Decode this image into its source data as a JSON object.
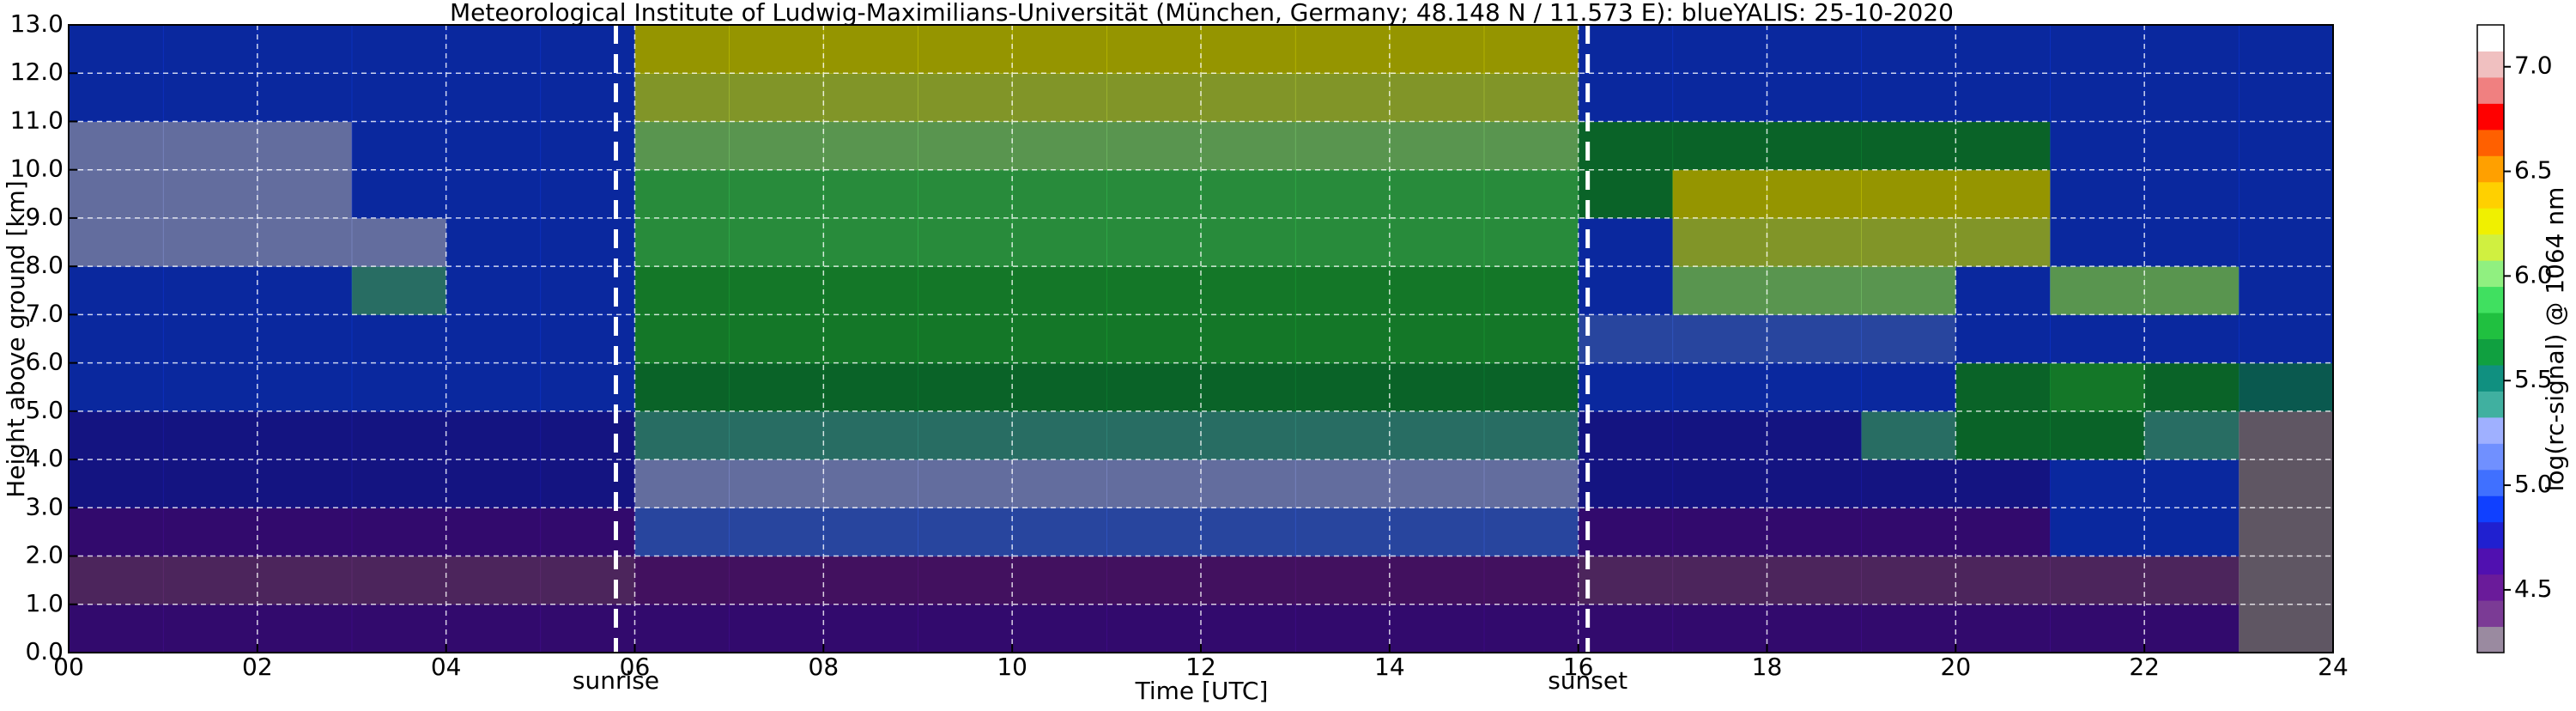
{
  "chart_data": {
    "type": "heatmap",
    "title": "Meteorological Institute of Ludwig-Maximilians-Universität (München, Germany; 48.148 N / 11.573 E):    blueYALIS: 25-10-2020",
    "xlabel": "Time [UTC]",
    "ylabel": "Height above ground [km]",
    "colorbar_label": "log(rc-signal) @ 1064 nm",
    "xlim": [
      0,
      24
    ],
    "ylim": [
      0,
      13
    ],
    "xticks": [
      {
        "value": 0,
        "label": "00"
      },
      {
        "value": 2,
        "label": "02"
      },
      {
        "value": 4,
        "label": "04"
      },
      {
        "value": 6,
        "label": "06"
      },
      {
        "value": 8,
        "label": "08"
      },
      {
        "value": 10,
        "label": "10"
      },
      {
        "value": 12,
        "label": "12"
      },
      {
        "value": 14,
        "label": "14"
      },
      {
        "value": 16,
        "label": "16"
      },
      {
        "value": 18,
        "label": "18"
      },
      {
        "value": 20,
        "label": "20"
      },
      {
        "value": 22,
        "label": "22"
      },
      {
        "value": 24,
        "label": "24"
      }
    ],
    "yticks": [
      {
        "value": 0,
        "label": "0.0"
      },
      {
        "value": 1,
        "label": "1.0"
      },
      {
        "value": 2,
        "label": "2.0"
      },
      {
        "value": 3,
        "label": "3.0"
      },
      {
        "value": 4,
        "label": "4.0"
      },
      {
        "value": 5,
        "label": "5.0"
      },
      {
        "value": 6,
        "label": "6.0"
      },
      {
        "value": 7,
        "label": "7.0"
      },
      {
        "value": 8,
        "label": "8.0"
      },
      {
        "value": 9,
        "label": "9.0"
      },
      {
        "value": 10,
        "label": "10.0"
      },
      {
        "value": 11,
        "label": "11.0"
      },
      {
        "value": 12,
        "label": "12.0"
      },
      {
        "value": 13,
        "label": "13.0"
      }
    ],
    "grid": true,
    "xbins": [
      0,
      1,
      2,
      3,
      4,
      5,
      6,
      7,
      8,
      9,
      10,
      11,
      12,
      13,
      14,
      15,
      16,
      17,
      18,
      19,
      20,
      21,
      22,
      23,
      24
    ],
    "ybins": [
      0,
      1,
      2,
      3,
      4,
      5,
      6,
      7,
      8,
      9,
      10,
      11,
      12,
      13
    ],
    "z": [
      [
        4.6,
        4.6,
        4.6,
        4.6,
        4.6,
        4.6,
        4.6,
        4.6,
        4.6,
        4.6,
        4.6,
        4.6,
        4.6,
        4.6,
        4.6,
        4.6,
        4.6,
        4.6,
        4.6,
        4.6,
        4.6,
        4.6,
        4.6,
        4.3
      ],
      [
        4.4,
        4.4,
        4.4,
        4.4,
        4.4,
        4.4,
        4.5,
        4.5,
        4.5,
        4.5,
        4.5,
        4.5,
        4.5,
        4.5,
        4.5,
        4.5,
        4.4,
        4.4,
        4.4,
        4.4,
        4.4,
        4.4,
        4.4,
        4.2
      ],
      [
        4.6,
        4.6,
        4.6,
        4.6,
        4.6,
        4.6,
        5.0,
        5.0,
        5.0,
        5.0,
        5.0,
        5.0,
        5.0,
        5.0,
        5.0,
        5.0,
        4.6,
        4.6,
        4.6,
        4.6,
        4.6,
        4.9,
        4.9,
        4.2
      ],
      [
        4.7,
        4.7,
        4.7,
        4.7,
        4.7,
        4.7,
        5.2,
        5.2,
        5.2,
        5.2,
        5.2,
        5.2,
        5.2,
        5.2,
        5.2,
        5.2,
        4.7,
        4.7,
        4.7,
        4.7,
        4.7,
        4.9,
        4.9,
        4.2
      ],
      [
        4.8,
        4.8,
        4.8,
        4.8,
        4.8,
        4.8,
        5.4,
        5.4,
        5.4,
        5.4,
        5.4,
        5.4,
        5.4,
        5.4,
        5.4,
        5.4,
        4.8,
        4.8,
        4.8,
        5.4,
        5.6,
        5.6,
        5.4,
        4.3
      ],
      [
        4.85,
        4.85,
        4.85,
        4.85,
        4.85,
        4.85,
        5.6,
        5.6,
        5.6,
        5.6,
        5.6,
        5.6,
        5.6,
        5.6,
        5.6,
        5.6,
        4.85,
        4.85,
        4.85,
        4.85,
        5.6,
        5.7,
        5.6,
        5.5
      ],
      [
        4.9,
        4.9,
        4.9,
        4.9,
        4.9,
        4.9,
        5.7,
        5.7,
        5.7,
        5.7,
        5.7,
        5.7,
        5.7,
        5.7,
        5.7,
        5.7,
        5.0,
        5.0,
        5.0,
        5.0,
        4.9,
        4.9,
        4.9,
        4.9
      ],
      [
        4.9,
        4.9,
        4.9,
        5.4,
        4.9,
        4.9,
        5.8,
        5.8,
        5.8,
        5.8,
        5.8,
        5.8,
        5.8,
        5.8,
        5.8,
        5.8,
        4.9,
        6.0,
        6.0,
        6.0,
        4.9,
        6.0,
        6.0,
        4.9
      ],
      [
        5.3,
        5.3,
        5.3,
        5.3,
        4.9,
        4.9,
        5.9,
        5.9,
        5.9,
        5.9,
        5.9,
        5.9,
        5.9,
        5.9,
        5.9,
        5.9,
        4.9,
        6.1,
        6.1,
        6.1,
        6.1,
        4.9,
        4.9,
        4.9
      ],
      [
        5.3,
        5.3,
        5.3,
        4.9,
        4.9,
        4.9,
        5.9,
        5.9,
        5.9,
        5.9,
        5.9,
        5.9,
        5.9,
        5.9,
        5.9,
        5.9,
        5.6,
        6.3,
        6.3,
        6.3,
        6.3,
        4.9,
        4.9,
        4.9
      ],
      [
        5.2,
        5.2,
        5.2,
        4.9,
        4.9,
        4.9,
        6.0,
        6.0,
        6.0,
        6.0,
        6.0,
        6.0,
        6.0,
        6.0,
        6.0,
        6.0,
        5.6,
        5.6,
        5.6,
        5.6,
        5.6,
        4.9,
        4.9,
        4.9
      ],
      [
        4.9,
        4.9,
        4.9,
        4.9,
        4.9,
        4.9,
        6.1,
        6.1,
        6.1,
        6.1,
        6.1,
        6.1,
        6.1,
        6.1,
        6.1,
        6.1,
        4.9,
        4.9,
        4.9,
        4.9,
        4.9,
        4.9,
        4.9,
        4.9
      ],
      [
        4.9,
        4.9,
        4.9,
        4.9,
        4.9,
        4.9,
        6.3,
        6.3,
        6.3,
        6.3,
        6.3,
        6.3,
        6.3,
        6.3,
        6.3,
        6.3,
        4.9,
        4.9,
        4.9,
        4.9,
        4.9,
        4.9,
        4.9,
        4.9
      ]
    ],
    "clim": [
      4.2,
      7.2
    ],
    "cticks": [
      4.5,
      {
        "value": 5,
        "label": "5.0"
      },
      5.5,
      {
        "value": 6,
        "label": "6.0"
      },
      6.5,
      {
        "value": 7,
        "label": "7.0"
      }
    ],
    "colors": [
      "#9a8aa0",
      "#7b3b95",
      "#6a1b9a",
      "#5010b0",
      "#2020d0",
      "#1040ff",
      "#4070ff",
      "#7090ff",
      "#9fb0ff",
      "#40b0a0",
      "#109080",
      "#10a040",
      "#20c040",
      "#40e060",
      "#90f080",
      "#d0f040",
      "#f0f000",
      "#ffd000",
      "#ffa000",
      "#ff6000",
      "#ff0000",
      "#f08080",
      "#f0c0c0",
      "#ffffff"
    ],
    "annotations": [
      {
        "text": "sunrise",
        "x": 5.8
      },
      {
        "text": "sunset",
        "x": 16.1
      }
    ]
  }
}
